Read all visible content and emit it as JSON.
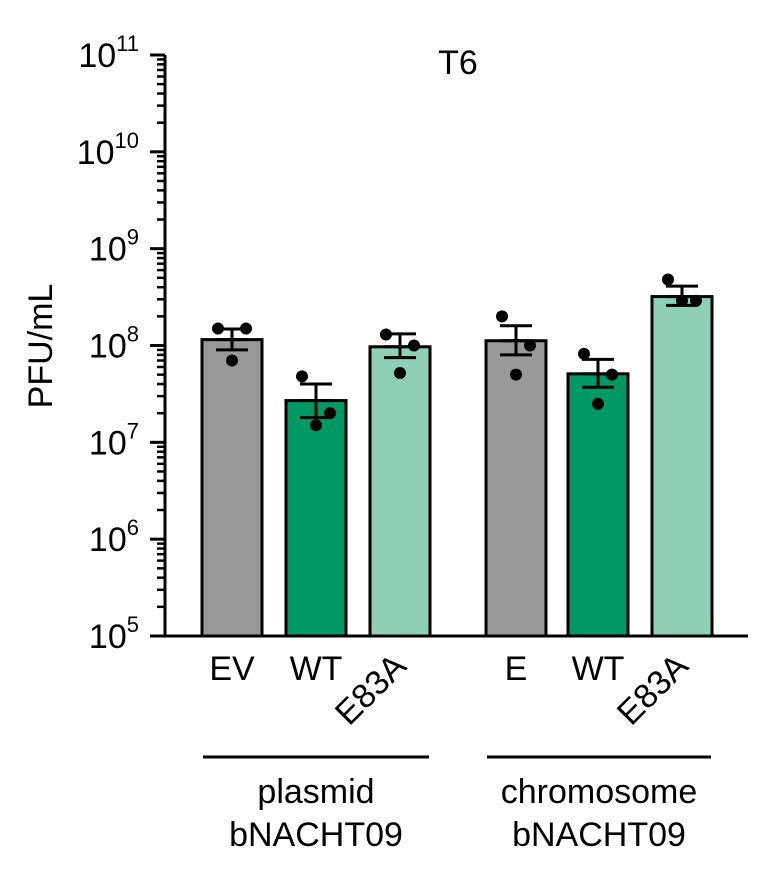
{
  "chart_data": {
    "type": "bar",
    "title": "T6",
    "ylabel": "PFU/mL",
    "yscale": "log",
    "ylim": [
      100000,
      100000000000
    ],
    "ytick_base": "10",
    "ytick_exponents": [
      "5",
      "6",
      "7",
      "8",
      "9",
      "10",
      "11"
    ],
    "categories": [
      "EV",
      "WT",
      "E83A",
      "E",
      "WT",
      "E83A"
    ],
    "values": [
      115000000,
      27000000,
      97000000,
      112000000,
      51000000,
      320000000
    ],
    "error_upper": [
      148000000,
      40000000,
      132000000,
      160000000,
      72000000,
      410000000
    ],
    "error_lower": [
      90000000,
      18000000,
      75000000,
      80000000,
      37000000,
      260000000
    ],
    "points": [
      [
        150000000,
        150000000,
        70000000
      ],
      [
        48000000,
        20000000,
        15000000
      ],
      [
        130000000,
        100000000,
        52000000
      ],
      [
        200000000,
        100000000,
        50000000
      ],
      [
        82000000,
        50000000,
        25000000
      ],
      [
        480000000,
        290000000,
        290000000
      ]
    ],
    "bar_colors": [
      "#999999",
      "#009966",
      "#8fcfb5",
      "#999999",
      "#009966",
      "#8fcfb5"
    ],
    "groups": [
      {
        "label_line1": "plasmid",
        "label_line2": "bNACHT09",
        "members": [
          0,
          1,
          2
        ]
      },
      {
        "label_line1": "chromosome",
        "label_line2": "bNACHT09",
        "members": [
          3,
          4,
          5
        ]
      }
    ],
    "grid": false
  }
}
